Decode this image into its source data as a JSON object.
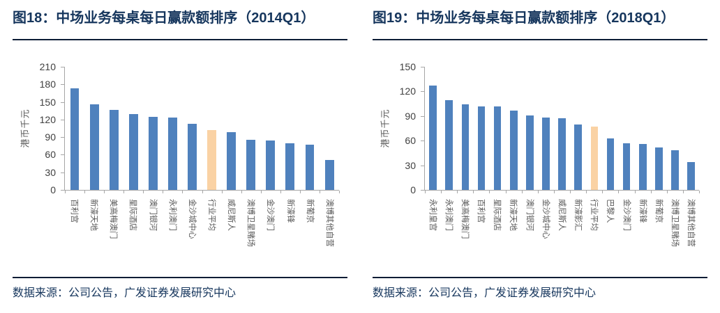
{
  "page": {
    "background": "#FFFFFF"
  },
  "colors": {
    "title_navy": "#16365D",
    "rule_navy": "#0C1C35",
    "axis_gray": "#A6A6A6",
    "bar_blue": "#4F81BD",
    "highlight_peach": "#FAD2A4"
  },
  "figures": [
    {
      "title": "图18：中场业务每桌每日赢款额排序（2014Q1）",
      "source": "数据来源：公司公告，广发证券发展研究中心"
    },
    {
      "title": "图19：中场业务每桌每日赢款额排序（2018Q1）",
      "source": "数据来源：公司公告，广发证券发展研究中心"
    }
  ],
  "chart_data": [
    {
      "type": "bar",
      "title": "图18：中场业务每桌每日赢款额排序（2014Q1）",
      "xlabel": "",
      "ylabel": "港币千元",
      "ylim": [
        0,
        210
      ],
      "ytick_step": 30,
      "grid": false,
      "legend": false,
      "categories": [
        "百利宫",
        "新濠天地",
        "美高梅澳门",
        "星际酒店",
        "澳门银河",
        "永利澳门",
        "金沙城中心",
        "行业平均",
        "威尼斯人",
        "澳博卫星赌场",
        "金沙澳门",
        "新濠锋",
        "新葡京",
        "澳博其他自营"
      ],
      "values": [
        173,
        146,
        137,
        129,
        124,
        123,
        113,
        102,
        98,
        86,
        84,
        79,
        77,
        51
      ],
      "highlight_category": "行业平均",
      "colors": {
        "bar": "#4F81BD",
        "highlight": "#FAD2A4"
      }
    },
    {
      "type": "bar",
      "title": "图19：中场业务每桌每日赢款额排序（2018Q1）",
      "xlabel": "",
      "ylabel": "港币千元",
      "ylim": [
        0,
        150
      ],
      "ytick_step": 30,
      "grid": false,
      "legend": false,
      "categories": [
        "永利皇宫",
        "永利澳门",
        "美高梅澳门",
        "百利宫",
        "星际酒店",
        "新濠天地",
        "澳门银河",
        "金沙城中心",
        "威尼斯人",
        "新濠影汇",
        "行业平均",
        "巴黎人",
        "金沙澳门",
        "新濠锋",
        "新葡京",
        "澳博卫星赌场",
        "澳博其他自营"
      ],
      "values": [
        127,
        109,
        104,
        102,
        102,
        97,
        91,
        88,
        87,
        80,
        77,
        63,
        57,
        56,
        52,
        48,
        34
      ],
      "highlight_category": "行业平均",
      "colors": {
        "bar": "#4F81BD",
        "highlight": "#FAD2A4"
      }
    }
  ]
}
